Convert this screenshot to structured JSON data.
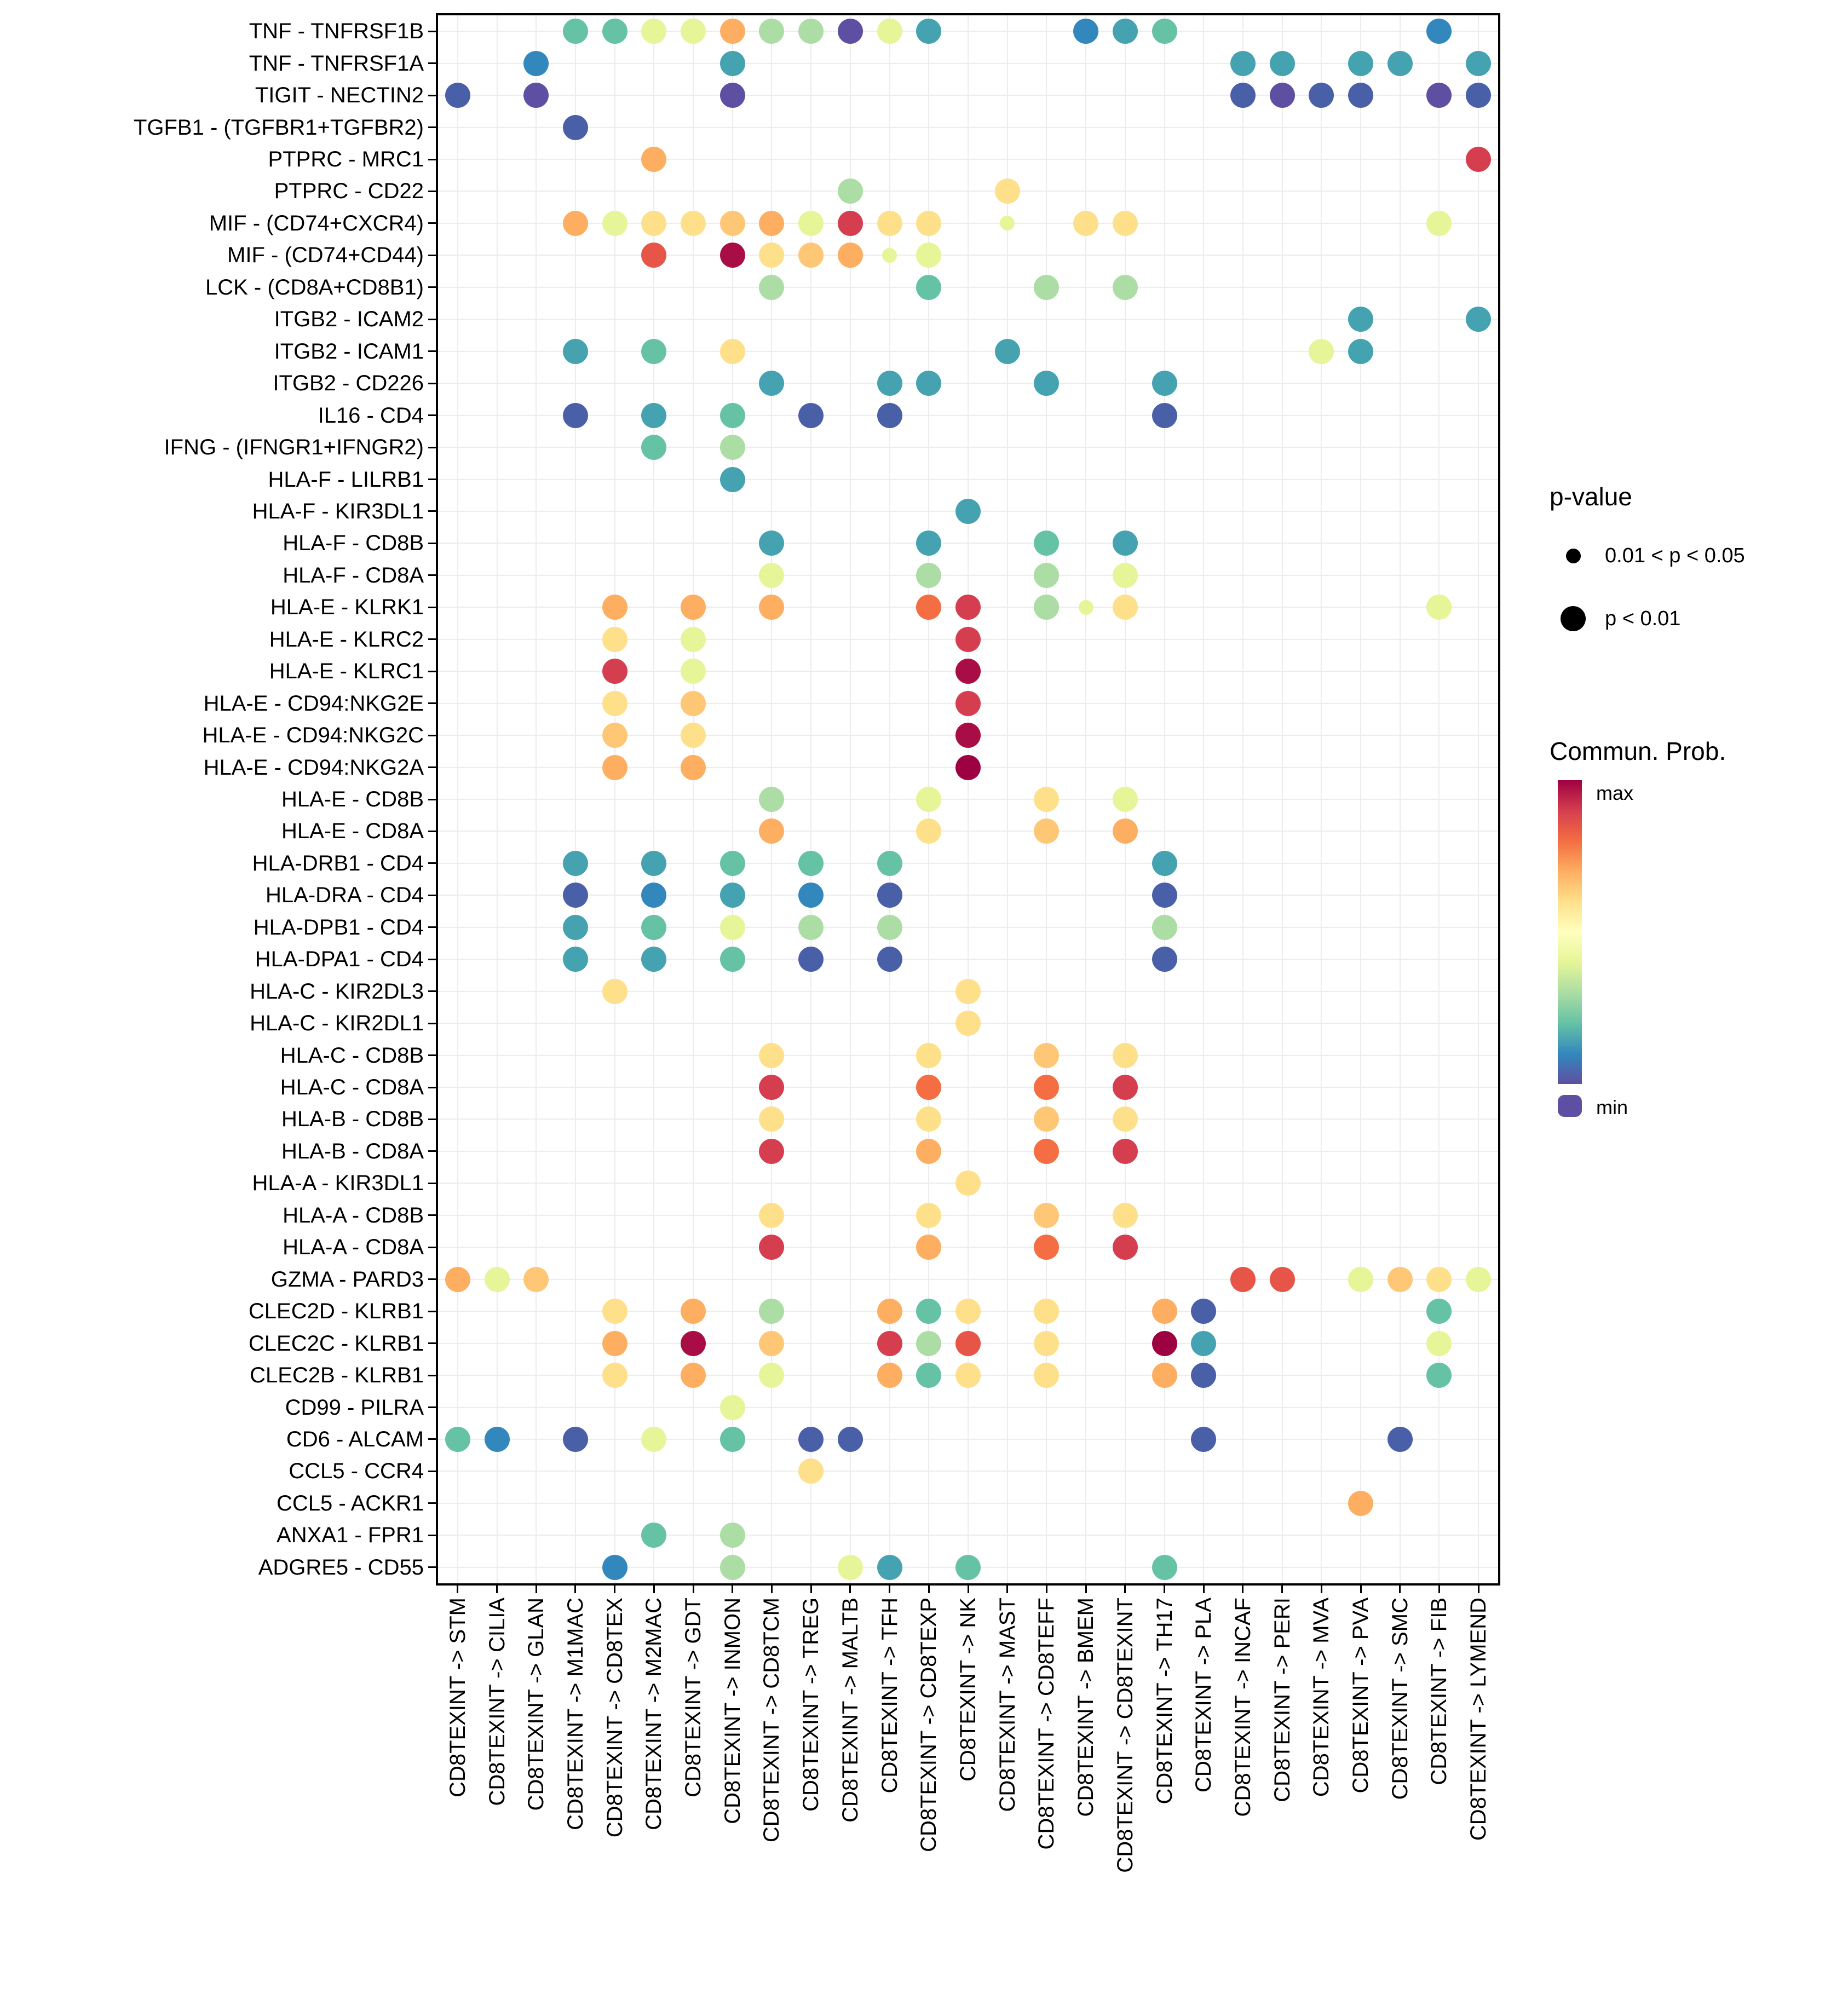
{
  "legend": {
    "pvalue_title": "p-value",
    "pvalue_items": [
      {
        "label": "0.01 < p < 0.05",
        "size": "small"
      },
      {
        "label": "p < 0.01",
        "size": "large"
      }
    ],
    "colorbar_title": "Commun. Prob.",
    "colorbar_max": "max",
    "colorbar_min": "min",
    "colorbar_colors": [
      "#9E0142",
      "#D53E4F",
      "#F46D43",
      "#FDAE61",
      "#FEE08B",
      "#FFFFBF",
      "#E6F598",
      "#ABDDA4",
      "#66C2A5",
      "#3288BD",
      "#5E4FA2"
    ]
  },
  "chart_data": {
    "type": "scatter",
    "subtype": "bubble-dotplot",
    "title": "",
    "xlabel": "",
    "ylabel": "",
    "grid": true,
    "background": "#FFFFFF",
    "legend_position": "right",
    "x_categories": [
      "CD8TEXINT -> STM",
      "CD8TEXINT -> CILIA",
      "CD8TEXINT -> GLAN",
      "CD8TEXINT -> M1MAC",
      "CD8TEXINT -> CD8TEX",
      "CD8TEXINT -> M2MAC",
      "CD8TEXINT -> GDT",
      "CD8TEXINT -> INMON",
      "CD8TEXINT -> CD8TCM",
      "CD8TEXINT -> TREG",
      "CD8TEXINT -> MALTB",
      "CD8TEXINT -> TFH",
      "CD8TEXINT -> CD8TEXP",
      "CD8TEXINT -> NK",
      "CD8TEXINT -> MAST",
      "CD8TEXINT -> CD8TEFF",
      "CD8TEXINT -> BMEM",
      "CD8TEXINT -> CD8TEXINT",
      "CD8TEXINT -> TH17",
      "CD8TEXINT -> PLA",
      "CD8TEXINT -> INCAF",
      "CD8TEXINT -> PERI",
      "CD8TEXINT -> MVA",
      "CD8TEXINT -> PVA",
      "CD8TEXINT -> SMC",
      "CD8TEXINT -> FIB",
      "CD8TEXINT -> LYMEND"
    ],
    "y_categories": [
      "TNF - TNFRSF1B",
      "TNF - TNFRSF1A",
      "TIGIT - NECTIN2",
      "TGFB1 - (TGFBR1+TGFBR2)",
      "PTPRC - MRC1",
      "PTPRC - CD22",
      "MIF - (CD74+CXCR4)",
      "MIF - (CD74+CD44)",
      "LCK - (CD8A+CD8B1)",
      "ITGB2 - ICAM2",
      "ITGB2 - ICAM1",
      "ITGB2 - CD226",
      "IL16 - CD4",
      "IFNG - (IFNGR1+IFNGR2)",
      "HLA-F - LILRB1",
      "HLA-F - KIR3DL1",
      "HLA-F - CD8B",
      "HLA-F - CD8A",
      "HLA-E - KLRK1",
      "HLA-E - KLRC2",
      "HLA-E - KLRC1",
      "HLA-E - CD94:NKG2E",
      "HLA-E - CD94:NKG2C",
      "HLA-E - CD94:NKG2A",
      "HLA-E - CD8B",
      "HLA-E - CD8A",
      "HLA-DRB1 - CD4",
      "HLA-DRA - CD4",
      "HLA-DPB1 - CD4",
      "HLA-DPA1 - CD4",
      "HLA-C - KIR2DL3",
      "HLA-C - KIR2DL1",
      "HLA-C - CD8B",
      "HLA-C - CD8A",
      "HLA-B - CD8B",
      "HLA-B - CD8A",
      "HLA-A - KIR3DL1",
      "HLA-A - CD8B",
      "HLA-A - CD8A",
      "GZMA - PARD3",
      "CLEC2D - KLRB1",
      "CLEC2C - KLRB1",
      "CLEC2B - KLRB1",
      "CD99 - PILRA",
      "CD6 - ALCAM",
      "CCL5 - CCR4",
      "CCL5 - ACKR1",
      "ANXA1 - FPR1",
      "ADGRE5 - CD55"
    ],
    "points_format": [
      "y_row_index",
      "x_col_index",
      "communication_probability_color",
      "pvalue_size_class"
    ],
    "size_classes": {
      "1": "p < 0.01",
      "0": "0.01 < p < 0.05"
    },
    "points": [
      [
        0,
        3,
        "#66C2A5",
        1
      ],
      [
        0,
        4,
        "#66C2A5",
        1
      ],
      [
        0,
        5,
        "#E6F598",
        1
      ],
      [
        0,
        6,
        "#E6F598",
        1
      ],
      [
        0,
        7,
        "#FDAE61",
        1
      ],
      [
        0,
        8,
        "#ABDDA4",
        1
      ],
      [
        0,
        9,
        "#ABDDA4",
        1
      ],
      [
        0,
        10,
        "#5E4FA2",
        1
      ],
      [
        0,
        11,
        "#E6F598",
        1
      ],
      [
        0,
        12,
        "#45A2B1",
        1
      ],
      [
        0,
        16,
        "#3288BD",
        1
      ],
      [
        0,
        17,
        "#45A2B1",
        1
      ],
      [
        0,
        18,
        "#66C2A5",
        1
      ],
      [
        0,
        25,
        "#3288BD",
        1
      ],
      [
        1,
        2,
        "#3288BD",
        1
      ],
      [
        1,
        7,
        "#45A2B1",
        1
      ],
      [
        1,
        20,
        "#45A2B1",
        1
      ],
      [
        1,
        21,
        "#45A2B1",
        1
      ],
      [
        1,
        23,
        "#45A2B1",
        1
      ],
      [
        1,
        24,
        "#45A2B1",
        1
      ],
      [
        1,
        26,
        "#45A2B1",
        1
      ],
      [
        2,
        0,
        "#4960A8",
        1
      ],
      [
        2,
        2,
        "#5E4FA2",
        1
      ],
      [
        2,
        7,
        "#5E4FA2",
        1
      ],
      [
        2,
        20,
        "#4960A8",
        1
      ],
      [
        2,
        21,
        "#5E4FA2",
        1
      ],
      [
        2,
        22,
        "#4960A8",
        1
      ],
      [
        2,
        23,
        "#4960A8",
        1
      ],
      [
        2,
        25,
        "#5E4FA2",
        1
      ],
      [
        2,
        26,
        "#4960A8",
        1
      ],
      [
        3,
        3,
        "#4960A8",
        1
      ],
      [
        4,
        5,
        "#FDAE61",
        1
      ],
      [
        4,
        26,
        "#D53E4F",
        1
      ],
      [
        5,
        10,
        "#ABDDA4",
        1
      ],
      [
        5,
        14,
        "#FEE08B",
        1
      ],
      [
        6,
        3,
        "#FDAE61",
        1
      ],
      [
        6,
        4,
        "#E6F598",
        1
      ],
      [
        6,
        5,
        "#FEE08B",
        1
      ],
      [
        6,
        6,
        "#FEE08B",
        1
      ],
      [
        6,
        7,
        "#FDC776",
        1
      ],
      [
        6,
        8,
        "#FDAE61",
        1
      ],
      [
        6,
        9,
        "#E6F598",
        1
      ],
      [
        6,
        10,
        "#D53E4F",
        1
      ],
      [
        6,
        11,
        "#FEE08B",
        1
      ],
      [
        6,
        12,
        "#FEE08B",
        1
      ],
      [
        6,
        14,
        "#E6F598",
        0
      ],
      [
        6,
        16,
        "#FEE08B",
        1
      ],
      [
        6,
        17,
        "#FEE08B",
        1
      ],
      [
        6,
        25,
        "#E6F598",
        1
      ],
      [
        7,
        5,
        "#E65548",
        1
      ],
      [
        7,
        7,
        "#A90D45",
        1
      ],
      [
        7,
        8,
        "#FEE08B",
        1
      ],
      [
        7,
        9,
        "#FDC776",
        1
      ],
      [
        7,
        10,
        "#FDAE61",
        1
      ],
      [
        7,
        11,
        "#E6F598",
        0
      ],
      [
        7,
        12,
        "#E6F598",
        1
      ],
      [
        8,
        8,
        "#ABDDA4",
        1
      ],
      [
        8,
        12,
        "#66C2A5",
        1
      ],
      [
        8,
        15,
        "#ABDDA4",
        1
      ],
      [
        8,
        17,
        "#ABDDA4",
        1
      ],
      [
        9,
        23,
        "#45A2B1",
        1
      ],
      [
        9,
        26,
        "#45A2B1",
        1
      ],
      [
        10,
        3,
        "#45A2B1",
        1
      ],
      [
        10,
        5,
        "#66C2A5",
        1
      ],
      [
        10,
        7,
        "#FEE08B",
        1
      ],
      [
        10,
        14,
        "#45A2B1",
        1
      ],
      [
        10,
        22,
        "#E6F598",
        1
      ],
      [
        10,
        23,
        "#45A2B1",
        1
      ],
      [
        11,
        8,
        "#45A2B1",
        1
      ],
      [
        11,
        11,
        "#45A2B1",
        1
      ],
      [
        11,
        12,
        "#45A2B1",
        1
      ],
      [
        11,
        15,
        "#45A2B1",
        1
      ],
      [
        11,
        18,
        "#45A2B1",
        1
      ],
      [
        12,
        3,
        "#4960A8",
        1
      ],
      [
        12,
        5,
        "#45A2B1",
        1
      ],
      [
        12,
        7,
        "#66C2A5",
        1
      ],
      [
        12,
        9,
        "#4960A8",
        1
      ],
      [
        12,
        11,
        "#4960A8",
        1
      ],
      [
        12,
        18,
        "#4960A8",
        1
      ],
      [
        13,
        5,
        "#66C2A5",
        1
      ],
      [
        13,
        7,
        "#ABDDA4",
        1
      ],
      [
        14,
        7,
        "#45A2B1",
        1
      ],
      [
        15,
        13,
        "#45A2B1",
        1
      ],
      [
        16,
        8,
        "#45A2B1",
        1
      ],
      [
        16,
        12,
        "#45A2B1",
        1
      ],
      [
        16,
        15,
        "#66C2A5",
        1
      ],
      [
        16,
        17,
        "#45A2B1",
        1
      ],
      [
        17,
        8,
        "#E6F598",
        1
      ],
      [
        17,
        12,
        "#ABDDA4",
        1
      ],
      [
        17,
        15,
        "#ABDDA4",
        1
      ],
      [
        17,
        17,
        "#E6F598",
        1
      ],
      [
        18,
        4,
        "#FDAE61",
        1
      ],
      [
        18,
        6,
        "#FDAE61",
        1
      ],
      [
        18,
        8,
        "#FDAE61",
        1
      ],
      [
        18,
        12,
        "#F46D43",
        1
      ],
      [
        18,
        13,
        "#D53E4F",
        1
      ],
      [
        18,
        15,
        "#ABDDA4",
        1
      ],
      [
        18,
        16,
        "#E6F598",
        0
      ],
      [
        18,
        17,
        "#FEE08B",
        1
      ],
      [
        18,
        25,
        "#E6F598",
        1
      ],
      [
        19,
        4,
        "#FEE08B",
        1
      ],
      [
        19,
        6,
        "#E6F598",
        1
      ],
      [
        19,
        13,
        "#D53E4F",
        1
      ],
      [
        20,
        4,
        "#D53E4F",
        1
      ],
      [
        20,
        6,
        "#E6F598",
        1
      ],
      [
        20,
        13,
        "#A90D45",
        1
      ],
      [
        21,
        4,
        "#FEE08B",
        1
      ],
      [
        21,
        6,
        "#FDC776",
        1
      ],
      [
        21,
        13,
        "#D53E4F",
        1
      ],
      [
        22,
        4,
        "#FDC776",
        1
      ],
      [
        22,
        6,
        "#FEE08B",
        1
      ],
      [
        22,
        13,
        "#A90D45",
        1
      ],
      [
        23,
        4,
        "#FDAE61",
        1
      ],
      [
        23,
        6,
        "#FDAE61",
        1
      ],
      [
        23,
        13,
        "#9E0142",
        1
      ],
      [
        24,
        8,
        "#ABDDA4",
        1
      ],
      [
        24,
        12,
        "#E6F598",
        1
      ],
      [
        24,
        15,
        "#FEE08B",
        1
      ],
      [
        24,
        17,
        "#E6F598",
        1
      ],
      [
        25,
        8,
        "#FDAE61",
        1
      ],
      [
        25,
        12,
        "#FEE08B",
        1
      ],
      [
        25,
        15,
        "#FDC776",
        1
      ],
      [
        25,
        17,
        "#FDAE61",
        1
      ],
      [
        26,
        3,
        "#45A2B1",
        1
      ],
      [
        26,
        5,
        "#45A2B1",
        1
      ],
      [
        26,
        7,
        "#66C2A5",
        1
      ],
      [
        26,
        9,
        "#66C2A5",
        1
      ],
      [
        26,
        11,
        "#66C2A5",
        1
      ],
      [
        26,
        18,
        "#45A2B1",
        1
      ],
      [
        27,
        3,
        "#4960A8",
        1
      ],
      [
        27,
        5,
        "#3288BD",
        1
      ],
      [
        27,
        7,
        "#45A2B1",
        1
      ],
      [
        27,
        9,
        "#3288BD",
        1
      ],
      [
        27,
        11,
        "#4960A8",
        1
      ],
      [
        27,
        18,
        "#4960A8",
        1
      ],
      [
        28,
        3,
        "#45A2B1",
        1
      ],
      [
        28,
        5,
        "#66C2A5",
        1
      ],
      [
        28,
        7,
        "#E6F598",
        1
      ],
      [
        28,
        9,
        "#ABDDA4",
        1
      ],
      [
        28,
        11,
        "#ABDDA4",
        1
      ],
      [
        28,
        18,
        "#ABDDA4",
        1
      ],
      [
        29,
        3,
        "#45A2B1",
        1
      ],
      [
        29,
        5,
        "#45A2B1",
        1
      ],
      [
        29,
        7,
        "#66C2A5",
        1
      ],
      [
        29,
        9,
        "#4960A8",
        1
      ],
      [
        29,
        11,
        "#4960A8",
        1
      ],
      [
        29,
        18,
        "#4960A8",
        1
      ],
      [
        30,
        4,
        "#FEE08B",
        1
      ],
      [
        30,
        13,
        "#FEE08B",
        1
      ],
      [
        31,
        13,
        "#FEE08B",
        1
      ],
      [
        32,
        8,
        "#FEE08B",
        1
      ],
      [
        32,
        12,
        "#FEE08B",
        1
      ],
      [
        32,
        15,
        "#FDC776",
        1
      ],
      [
        32,
        17,
        "#FEE08B",
        1
      ],
      [
        33,
        8,
        "#D53E4F",
        1
      ],
      [
        33,
        12,
        "#F46D43",
        1
      ],
      [
        33,
        15,
        "#F46D43",
        1
      ],
      [
        33,
        17,
        "#D53E4F",
        1
      ],
      [
        34,
        8,
        "#FEE08B",
        1
      ],
      [
        34,
        12,
        "#FEE08B",
        1
      ],
      [
        34,
        15,
        "#FDC776",
        1
      ],
      [
        34,
        17,
        "#FEE08B",
        1
      ],
      [
        35,
        8,
        "#D53E4F",
        1
      ],
      [
        35,
        12,
        "#FDAE61",
        1
      ],
      [
        35,
        15,
        "#F46D43",
        1
      ],
      [
        35,
        17,
        "#D53E4F",
        1
      ],
      [
        36,
        13,
        "#FEE08B",
        1
      ],
      [
        37,
        8,
        "#FEE08B",
        1
      ],
      [
        37,
        12,
        "#FEE08B",
        1
      ],
      [
        37,
        15,
        "#FDC776",
        1
      ],
      [
        37,
        17,
        "#FEE08B",
        1
      ],
      [
        38,
        8,
        "#D53E4F",
        1
      ],
      [
        38,
        12,
        "#FDAE61",
        1
      ],
      [
        38,
        15,
        "#F46D43",
        1
      ],
      [
        38,
        17,
        "#D53E4F",
        1
      ],
      [
        39,
        0,
        "#FDAE61",
        1
      ],
      [
        39,
        1,
        "#E6F598",
        1
      ],
      [
        39,
        2,
        "#FDC776",
        1
      ],
      [
        39,
        20,
        "#E65548",
        1
      ],
      [
        39,
        21,
        "#E65548",
        1
      ],
      [
        39,
        23,
        "#E6F598",
        1
      ],
      [
        39,
        24,
        "#FDC776",
        1
      ],
      [
        39,
        25,
        "#FEE08B",
        1
      ],
      [
        39,
        26,
        "#E6F598",
        1
      ],
      [
        40,
        4,
        "#FEE08B",
        1
      ],
      [
        40,
        6,
        "#FDAE61",
        1
      ],
      [
        40,
        8,
        "#ABDDA4",
        1
      ],
      [
        40,
        11,
        "#FDAE61",
        1
      ],
      [
        40,
        12,
        "#66C2A5",
        1
      ],
      [
        40,
        13,
        "#FEE08B",
        1
      ],
      [
        40,
        15,
        "#FEE08B",
        1
      ],
      [
        40,
        18,
        "#FDAE61",
        1
      ],
      [
        40,
        19,
        "#4960A8",
        1
      ],
      [
        40,
        25,
        "#66C2A5",
        1
      ],
      [
        41,
        4,
        "#FDAE61",
        1
      ],
      [
        41,
        6,
        "#A90D45",
        1
      ],
      [
        41,
        8,
        "#FDC776",
        1
      ],
      [
        41,
        11,
        "#D53E4F",
        1
      ],
      [
        41,
        12,
        "#ABDDA4",
        1
      ],
      [
        41,
        13,
        "#E65548",
        1
      ],
      [
        41,
        15,
        "#FEE08B",
        1
      ],
      [
        41,
        18,
        "#9E0142",
        1
      ],
      [
        41,
        19,
        "#45A2B1",
        1
      ],
      [
        41,
        25,
        "#E6F598",
        1
      ],
      [
        42,
        4,
        "#FEE08B",
        1
      ],
      [
        42,
        6,
        "#FDAE61",
        1
      ],
      [
        42,
        8,
        "#E6F598",
        1
      ],
      [
        42,
        11,
        "#FDAE61",
        1
      ],
      [
        42,
        12,
        "#66C2A5",
        1
      ],
      [
        42,
        13,
        "#FEE08B",
        1
      ],
      [
        42,
        15,
        "#FEE08B",
        1
      ],
      [
        42,
        18,
        "#FDAE61",
        1
      ],
      [
        42,
        19,
        "#4960A8",
        1
      ],
      [
        42,
        25,
        "#66C2A5",
        1
      ],
      [
        43,
        7,
        "#E6F598",
        1
      ],
      [
        44,
        0,
        "#66C2A5",
        1
      ],
      [
        44,
        1,
        "#3288BD",
        1
      ],
      [
        44,
        3,
        "#4960A8",
        1
      ],
      [
        44,
        5,
        "#E6F598",
        1
      ],
      [
        44,
        7,
        "#66C2A5",
        1
      ],
      [
        44,
        9,
        "#4960A8",
        1
      ],
      [
        44,
        10,
        "#4960A8",
        1
      ],
      [
        44,
        19,
        "#4960A8",
        1
      ],
      [
        44,
        24,
        "#4960A8",
        1
      ],
      [
        45,
        9,
        "#FEE08B",
        1
      ],
      [
        46,
        23,
        "#FDAE61",
        1
      ],
      [
        47,
        5,
        "#66C2A5",
        1
      ],
      [
        47,
        7,
        "#ABDDA4",
        1
      ],
      [
        48,
        4,
        "#3288BD",
        1
      ],
      [
        48,
        7,
        "#ABDDA4",
        1
      ],
      [
        48,
        10,
        "#E6F598",
        1
      ],
      [
        48,
        11,
        "#45A2B1",
        1
      ],
      [
        48,
        13,
        "#66C2A5",
        1
      ],
      [
        48,
        18,
        "#66C2A5",
        1
      ]
    ]
  }
}
